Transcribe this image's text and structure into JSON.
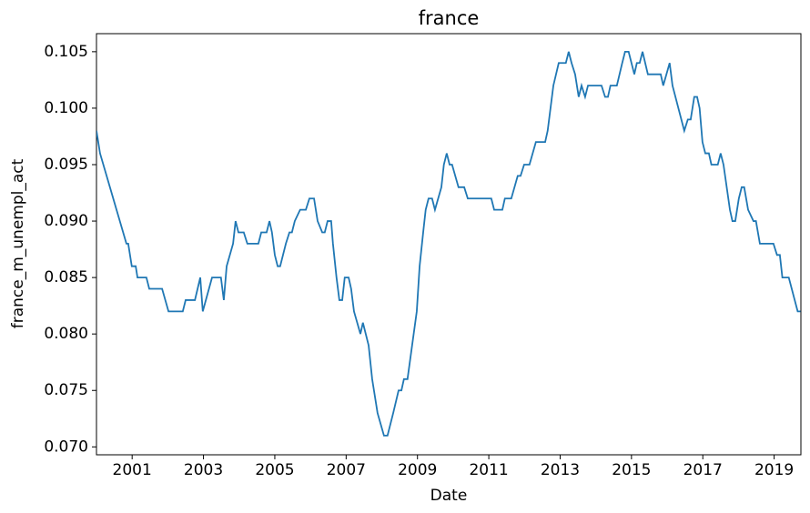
{
  "chart_data": {
    "type": "line",
    "title": "france",
    "x_label": "Date",
    "y_label": "france_m_unempl_act",
    "xlim": [
      2000,
      2019.75
    ],
    "ylim": [
      0.0693,
      0.1066
    ],
    "xticks": [
      2001,
      2003,
      2005,
      2007,
      2009,
      2011,
      2013,
      2015,
      2017,
      2019
    ],
    "yticks": [
      {
        "value": 0.07,
        "label": "0.070"
      },
      0.075,
      {
        "value": 0.08,
        "label": "0.080"
      },
      0.085,
      {
        "value": 0.09,
        "label": "0.090"
      },
      0.095,
      {
        "value": 0.1,
        "label": "0.100"
      },
      0.105
    ],
    "grid": false,
    "x": [
      2000.0,
      2000.1,
      2000.84,
      2000.89,
      2000.99,
      2001.1,
      2001.15,
      2001.4,
      2001.48,
      2001.84,
      2002.02,
      2002.42,
      2002.5,
      2002.76,
      2002.91,
      2002.98,
      2003.24,
      2003.49,
      2003.57,
      2003.65,
      2003.83,
      2003.9,
      2003.98,
      2004.13,
      2004.23,
      2004.54,
      2004.62,
      2004.77,
      2004.85,
      2004.92,
      2005.0,
      2005.08,
      2005.15,
      2005.31,
      2005.41,
      2005.48,
      2005.56,
      2005.71,
      2005.87,
      2005.97,
      2006.1,
      2006.2,
      2006.33,
      2006.4,
      2006.48,
      2006.58,
      2006.63,
      2006.73,
      2006.81,
      2006.89,
      2006.96,
      2007.07,
      2007.14,
      2007.22,
      2007.4,
      2007.47,
      2007.63,
      2007.73,
      2007.88,
      2008.06,
      2008.16,
      2008.32,
      2008.47,
      2008.55,
      2008.62,
      2008.72,
      2008.85,
      2008.98,
      2009.06,
      2009.16,
      2009.23,
      2009.31,
      2009.41,
      2009.49,
      2009.67,
      2009.74,
      2009.82,
      2009.9,
      2009.97,
      2010.15,
      2010.31,
      2010.41,
      2011.07,
      2011.15,
      2011.38,
      2011.45,
      2011.63,
      2011.81,
      2011.89,
      2011.99,
      2012.14,
      2012.32,
      2012.58,
      2012.65,
      2012.81,
      2012.96,
      2013.16,
      2013.24,
      2013.32,
      2013.42,
      2013.52,
      2013.6,
      2013.7,
      2013.78,
      2014.16,
      2014.26,
      2014.34,
      2014.41,
      2014.59,
      2014.74,
      2014.82,
      2014.92,
      2015.08,
      2015.15,
      2015.23,
      2015.31,
      2015.46,
      2015.82,
      2015.89,
      2016.07,
      2016.15,
      2016.48,
      2016.58,
      2016.66,
      2016.76,
      2016.84,
      2016.91,
      2016.99,
      2017.07,
      2017.17,
      2017.24,
      2017.42,
      2017.5,
      2017.58,
      2017.76,
      2017.83,
      2017.91,
      2018.01,
      2018.09,
      2018.16,
      2018.27,
      2018.42,
      2018.49,
      2018.6,
      2018.98,
      2019.08,
      2019.16,
      2019.23,
      2019.41,
      2019.66,
      2019.74
    ],
    "series": [
      {
        "name": "france_m_unempl_act",
        "color": "#1f77b4",
        "values": [
          0.098,
          0.096,
          0.088,
          0.088,
          0.086,
          0.086,
          0.085,
          0.085,
          0.084,
          0.084,
          0.082,
          0.082,
          0.083,
          0.083,
          0.085,
          0.082,
          0.085,
          0.085,
          0.083,
          0.086,
          0.088,
          0.09,
          0.089,
          0.089,
          0.088,
          0.088,
          0.089,
          0.089,
          0.09,
          0.089,
          0.087,
          0.086,
          0.086,
          0.088,
          0.089,
          0.089,
          0.09,
          0.091,
          0.091,
          0.092,
          0.092,
          0.09,
          0.089,
          0.089,
          0.09,
          0.09,
          0.088,
          0.085,
          0.083,
          0.083,
          0.085,
          0.085,
          0.084,
          0.082,
          0.08,
          0.081,
          0.079,
          0.076,
          0.073,
          0.071,
          0.071,
          0.073,
          0.075,
          0.075,
          0.076,
          0.076,
          0.079,
          0.082,
          0.086,
          0.089,
          0.091,
          0.092,
          0.092,
          0.091,
          0.093,
          0.095,
          0.096,
          0.095,
          0.095,
          0.093,
          0.093,
          0.092,
          0.092,
          0.091,
          0.091,
          0.092,
          0.092,
          0.094,
          0.094,
          0.095,
          0.095,
          0.097,
          0.097,
          0.098,
          0.102,
          0.104,
          0.104,
          0.105,
          0.104,
          0.103,
          0.101,
          0.102,
          0.101,
          0.102,
          0.102,
          0.101,
          0.101,
          0.102,
          0.102,
          0.104,
          0.105,
          0.105,
          0.103,
          0.104,
          0.104,
          0.105,
          0.103,
          0.103,
          0.102,
          0.104,
          0.102,
          0.098,
          0.099,
          0.099,
          0.101,
          0.101,
          0.1,
          0.097,
          0.096,
          0.096,
          0.095,
          0.095,
          0.096,
          0.095,
          0.091,
          0.09,
          0.09,
          0.092,
          0.093,
          0.093,
          0.091,
          0.09,
          0.09,
          0.088,
          0.088,
          0.087,
          0.087,
          0.085,
          0.085,
          0.082,
          0.082
        ]
      }
    ]
  }
}
